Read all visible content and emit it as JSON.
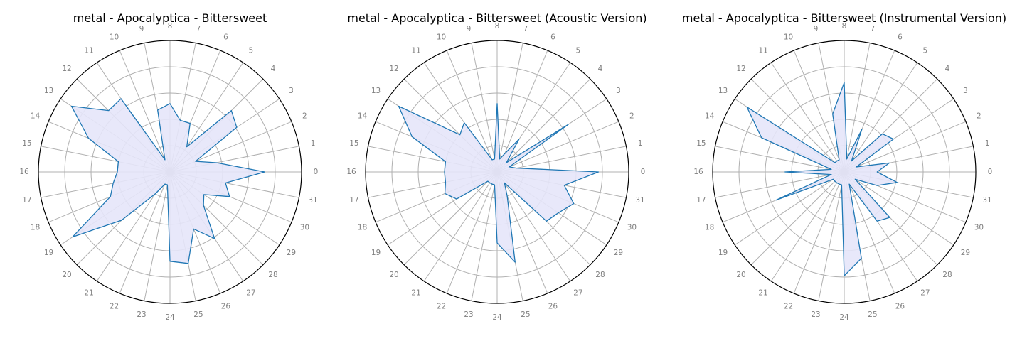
{
  "chart_data": [
    {
      "type": "radar",
      "title": "metal - Apocalyptica - Bittersweet",
      "categories": [
        "0",
        "1",
        "2",
        "3",
        "4",
        "5",
        "6",
        "7",
        "8",
        "9",
        "10",
        "11",
        "12",
        "13",
        "14",
        "15",
        "16",
        "17",
        "18",
        "19",
        "20",
        "21",
        "22",
        "23",
        "24",
        "25",
        "26",
        "27",
        "28",
        "29",
        "30",
        "31"
      ],
      "rlim": [
        0,
        1
      ],
      "grid": true,
      "series": [
        {
          "values": [
            0.72,
            0.36,
            0.21,
            0.61,
            0.66,
            0.23,
            0.4,
            0.4,
            0.52,
            0.48,
            0.1,
            0.67,
            0.66,
            0.9,
            0.67,
            0.4,
            0.4,
            0.44,
            0.49,
            0.89,
            0.52,
            0.2,
            0.1,
            0.1,
            0.68,
            0.71,
            0.47,
            0.61,
            0.36,
            0.31,
            0.49,
            0.43
          ]
        }
      ],
      "colors": {
        "line": "#1f77b4",
        "fill": "#e6e6fa"
      }
    },
    {
      "type": "radar",
      "title": "metal - Apocalyptica - Bittersweet (Acoustic Version)",
      "categories": [
        "0",
        "1",
        "2",
        "3",
        "4",
        "5",
        "6",
        "7",
        "8",
        "9",
        "10",
        "11",
        "12",
        "13",
        "14",
        "15",
        "16",
        "17",
        "18",
        "19",
        "20",
        "21",
        "22",
        "23",
        "24",
        "25",
        "26",
        "27",
        "28",
        "29",
        "30",
        "31"
      ],
      "rlim": [
        0,
        1
      ],
      "grid": true,
      "series": [
        {
          "values": [
            0.77,
            0.15,
            0.1,
            0.65,
            0.1,
            0.3,
            0.15,
            0.1,
            0.52,
            0.1,
            0.1,
            0.45,
            0.4,
            0.9,
            0.7,
            0.4,
            0.4,
            0.4,
            0.43,
            0.37,
            0.1,
            0.1,
            0.1,
            0.1,
            0.54,
            0.7,
            0.2,
            0.1,
            0.53,
            0.56,
            0.63,
            0.52
          ]
        }
      ],
      "colors": {
        "line": "#1f77b4",
        "fill": "#e6e6fa"
      }
    },
    {
      "type": "radar",
      "title": "metal - Apocalyptica - Bittersweet (Instrumental Version)",
      "categories": [
        "0",
        "1",
        "2",
        "3",
        "4",
        "5",
        "6",
        "7",
        "8",
        "9",
        "10",
        "11",
        "12",
        "13",
        "14",
        "15",
        "16",
        "17",
        "18",
        "19",
        "20",
        "21",
        "22",
        "23",
        "24",
        "25",
        "26",
        "27",
        "28",
        "29",
        "30",
        "31"
      ],
      "rlim": [
        0,
        1
      ],
      "grid": true,
      "series": [
        {
          "values": [
            0.25,
            0.35,
            0.1,
            0.45,
            0.41,
            0.1,
            0.35,
            0.1,
            0.68,
            0.45,
            0.1,
            0.1,
            0.1,
            0.89,
            0.68,
            0.1,
            0.45,
            0.1,
            0.56,
            0.1,
            0.1,
            0.1,
            0.1,
            0.1,
            0.79,
            0.67,
            0.1,
            0.45,
            0.49,
            0.1,
            0.27,
            0.41
          ]
        }
      ],
      "colors": {
        "line": "#1f77b4",
        "fill": "#e6e6fa"
      }
    }
  ]
}
